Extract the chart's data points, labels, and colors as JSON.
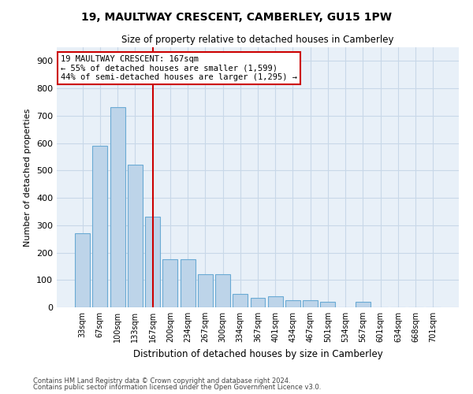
{
  "title": "19, MAULTWAY CRESCENT, CAMBERLEY, GU15 1PW",
  "subtitle": "Size of property relative to detached houses in Camberley",
  "xlabel": "Distribution of detached houses by size in Camberley",
  "ylabel": "Number of detached properties",
  "bar_values": [
    270,
    590,
    730,
    520,
    330,
    175,
    175,
    120,
    120,
    50,
    35,
    40,
    25,
    25,
    20,
    0,
    20,
    0,
    0,
    0,
    0
  ],
  "categories": [
    "33sqm",
    "67sqm",
    "100sqm",
    "133sqm",
    "167sqm",
    "200sqm",
    "234sqm",
    "267sqm",
    "300sqm",
    "334sqm",
    "367sqm",
    "401sqm",
    "434sqm",
    "467sqm",
    "501sqm",
    "534sqm",
    "567sqm",
    "601sqm",
    "634sqm",
    "668sqm",
    "701sqm"
  ],
  "bar_color": "#bdd4e9",
  "bar_edge_color": "#6aaad4",
  "highlight_bar_index": 4,
  "highlight_line_color": "#cc0000",
  "annotation_text": "19 MAULTWAY CRESCENT: 167sqm\n← 55% of detached houses are smaller (1,599)\n44% of semi-detached houses are larger (1,295) →",
  "annotation_box_color": "#cc0000",
  "ylim": [
    0,
    950
  ],
  "yticks": [
    0,
    100,
    200,
    300,
    400,
    500,
    600,
    700,
    800,
    900
  ],
  "background_color": "#ffffff",
  "plot_bg_color": "#e8f0f8",
  "grid_color": "#c8d8e8",
  "footer_line1": "Contains HM Land Registry data © Crown copyright and database right 2024.",
  "footer_line2": "Contains public sector information licensed under the Open Government Licence v3.0."
}
